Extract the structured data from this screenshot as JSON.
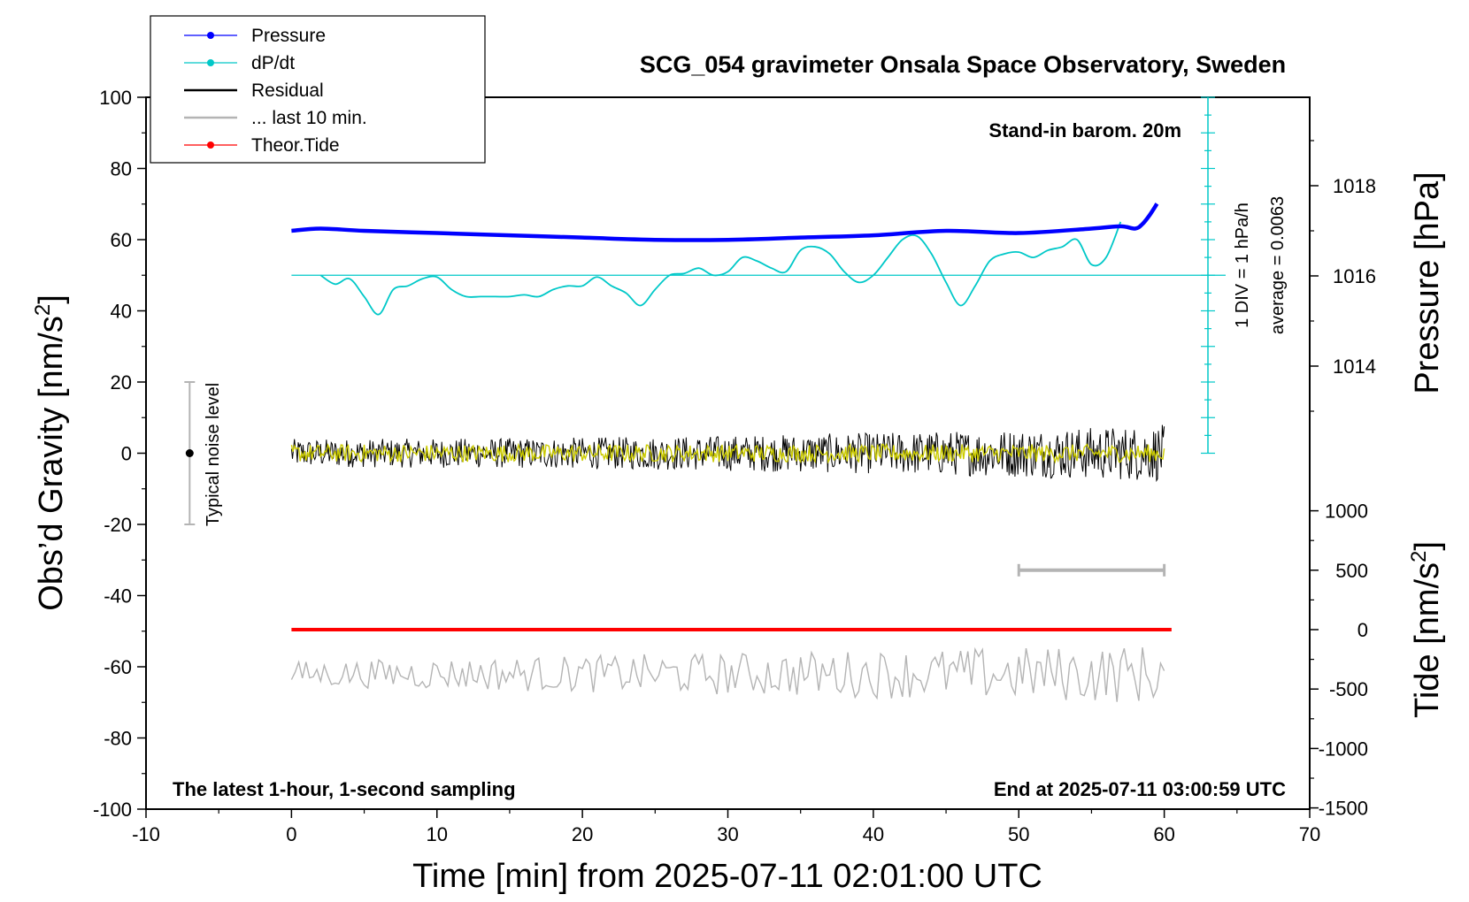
{
  "chart_data": {
    "type": "line",
    "title": "SCG_054 gravimeter Onsala Space Observatory, Sweden",
    "xlabel": "Time [min] from 2025-07-11 02:01:00 UTC",
    "ylabel_left": "Obs’d Gravity [nm/s",
    "ylabel_left_sup": "2",
    "ylabel_left_end": "]",
    "ylabel_right_pressure": "Pressure [hPa]",
    "ylabel_right_tide": "Tide [nm/s",
    "ylabel_right_tide_sup": "2",
    "ylabel_right_tide_end": "]",
    "xlim": [
      -10,
      70
    ],
    "ylim_left": [
      -100,
      100
    ],
    "xticks": [
      "-10",
      "0",
      "10",
      "20",
      "30",
      "40",
      "50",
      "60",
      "70"
    ],
    "yticks_left": [
      "100",
      "80",
      "60",
      "40",
      "20",
      "0",
      "-20",
      "-40",
      "-60",
      "-80",
      "-100"
    ],
    "pressure_ticks": [
      "1018",
      "1016",
      "1014"
    ],
    "tide_ticks": [
      "1000",
      "500",
      "0",
      "-500",
      "-1000",
      "-1500"
    ],
    "annotations": {
      "barometer": "Stand-in barom. 20m",
      "dpdt_scale": "1 DIV = 1 hPa/h",
      "dpdt_average": "average = 0.0063",
      "noise": "Typical noise level",
      "sampling": "The latest 1-hour, 1-second sampling",
      "end_time": "End at 2025-07-11 03:00:59 UTC"
    },
    "legend": [
      {
        "label": "Pressure",
        "color": "#0000ff",
        "marker": true
      },
      {
        "label": "dP/dt",
        "color": "#00c8c8",
        "marker": true
      },
      {
        "label": "Residual",
        "color": "#000000",
        "marker": false
      },
      {
        "label": "... last 10 min.",
        "color": "#b4b4b4",
        "marker": false
      },
      {
        "label": "Theor.Tide",
        "color": "#ff0000",
        "marker": true
      }
    ],
    "series": {
      "pressure_hPa": {
        "color": "#0000ff",
        "x": [
          0,
          2,
          5,
          10,
          15,
          20,
          25,
          30,
          35,
          40,
          45,
          50,
          55,
          57,
          58,
          58.5,
          59,
          59.5
        ],
        "y": [
          1017.0,
          1017.05,
          1017.0,
          1016.95,
          1016.9,
          1016.85,
          1016.8,
          1016.8,
          1016.85,
          1016.9,
          1017.0,
          1016.95,
          1017.05,
          1017.1,
          1017.05,
          1017.15,
          1017.35,
          1017.6
        ]
      },
      "dpdt_nm_s2": {
        "color": "#00c8c8",
        "baseline": 50,
        "x": [
          2,
          3,
          4,
          5,
          6,
          7,
          8,
          9,
          10,
          11,
          12,
          13,
          14,
          15,
          16,
          17,
          18,
          19,
          20,
          21,
          22,
          23,
          24,
          25,
          26,
          27,
          28,
          29,
          30,
          31,
          32,
          33,
          34,
          35,
          36,
          37,
          38,
          39,
          40,
          41,
          42,
          43,
          44,
          45,
          46,
          47,
          48,
          49,
          50,
          51,
          52,
          53,
          54,
          55,
          56,
          57
        ],
        "y": [
          50,
          47.5,
          49,
          44,
          39,
          46,
          47,
          49,
          49.5,
          46,
          44,
          44,
          44,
          44,
          44.5,
          44,
          46,
          47,
          47,
          49.5,
          47,
          45,
          41.5,
          46,
          50,
          50.5,
          52,
          50,
          51,
          55,
          54,
          52,
          51,
          57,
          58,
          56,
          51,
          48,
          50,
          55,
          60,
          61,
          56,
          48,
          41.5,
          47,
          54,
          56,
          56.5,
          55,
          57,
          58,
          60,
          53,
          55,
          65
        ]
      },
      "residual_nm_s2": {
        "color": "#000000",
        "x_range": [
          0,
          60
        ],
        "center": 0,
        "amplitude_start": 4,
        "amplitude_end": 8
      },
      "residual_last10_nm_s2": {
        "color": "#cccc00",
        "x_range": [
          0,
          60
        ],
        "center": 0,
        "amplitude": 2.5
      },
      "theor_tide_nm_s2": {
        "color": "#ff0000",
        "x_range": [
          0,
          60.5
        ],
        "value": 0
      },
      "tide_residual_gray": {
        "color": "#b4b4b4",
        "x_range": [
          0,
          60
        ],
        "center": -62,
        "amplitude": 6
      },
      "last10_marker": {
        "color": "#b4b4b4",
        "x_range": [
          50,
          60
        ],
        "tide_value": 500
      },
      "noise_bar": {
        "x": -7,
        "y": 0,
        "low": -20,
        "high": 20
      }
    }
  }
}
